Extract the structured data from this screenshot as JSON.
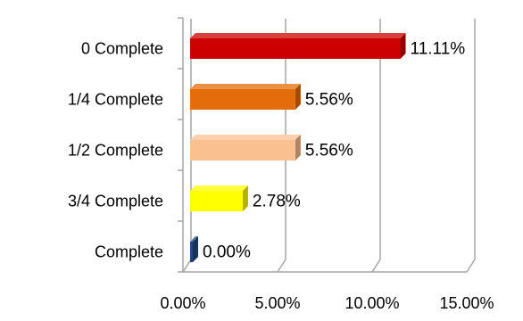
{
  "chart_data": {
    "type": "bar",
    "orientation": "horizontal",
    "style": "3d",
    "categories": [
      "0 Complete",
      "1/4 Complete",
      "1/2 Complete",
      "3/4 Complete",
      "Complete"
    ],
    "values": [
      11.11,
      5.56,
      5.56,
      2.78,
      0.0
    ],
    "value_labels": [
      "11.11%",
      "5.56%",
      "5.56%",
      "2.78%",
      "0.00%"
    ],
    "bar_colors": [
      "#cc0000",
      "#e46c0a",
      "#fac090",
      "#ffff00",
      "#1f497d"
    ],
    "xlim": [
      0,
      15
    ],
    "x_ticks": [
      0,
      5,
      10,
      15
    ],
    "x_tick_labels": [
      "0.00%",
      "5.00%",
      "10.00%",
      "15.00%"
    ],
    "grid": true,
    "legend": "none",
    "title": "",
    "xlabel": "",
    "ylabel": ""
  }
}
